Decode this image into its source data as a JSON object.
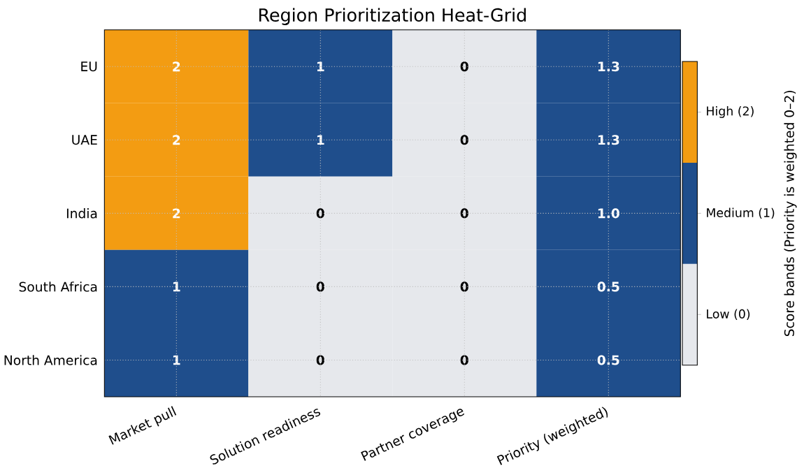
{
  "chart_data": {
    "type": "heatmap",
    "title": "Region Prioritization Heat-Grid",
    "categories": [
      "Market pull",
      "Solution readiness",
      "Partner coverage",
      "Priority (weighted)"
    ],
    "y_categories": [
      "EU",
      "UAE",
      "India",
      "South Africa",
      "North America"
    ],
    "cells": [
      [
        2,
        1,
        0,
        1.3
      ],
      [
        2,
        1,
        0,
        1.3
      ],
      [
        2,
        0,
        0,
        1.0
      ],
      [
        1,
        0,
        0,
        0.5
      ],
      [
        1,
        0,
        0,
        0.5
      ]
    ],
    "cell_labels": [
      [
        "2",
        "1",
        "0",
        "1.3"
      ],
      [
        "2",
        "1",
        "0",
        "1.3"
      ],
      [
        "2",
        "0",
        "0",
        "1.0"
      ],
      [
        "1",
        "0",
        "0",
        "0.5"
      ],
      [
        "1",
        "0",
        "0",
        "0.5"
      ]
    ],
    "clim": [
      -0.5,
      2.5
    ],
    "cticks": [
      {
        "value": 0,
        "label": "Low (0)"
      },
      {
        "value": 1,
        "label": "Medium (1)"
      },
      {
        "value": 2,
        "label": "High (2)"
      }
    ],
    "clabel": "Score bands (Priority is weighted 0–2)",
    "grid": true
  }
}
